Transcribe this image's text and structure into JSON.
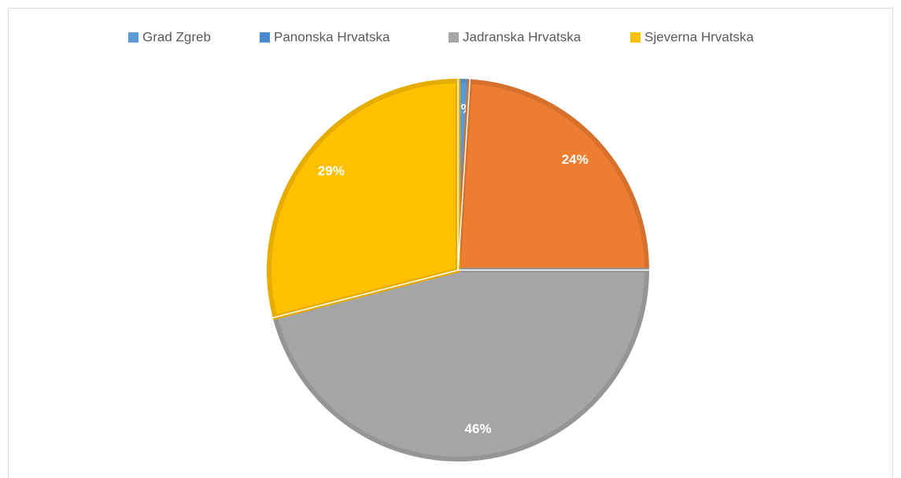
{
  "chart_data": {
    "type": "pie",
    "categories": [
      "Grad Zgreb",
      "Panonska Hrvatska",
      "Jadranska Hrvatska",
      "Sjeverna Hrvatska"
    ],
    "values": [
      1,
      24,
      46,
      29
    ],
    "value_labels": [
      "1%",
      "24%",
      "46%",
      "29%"
    ],
    "colors": [
      "#5b9bd5",
      "#ed7d31",
      "#a5a5a5",
      "#ffc000"
    ],
    "legend_colors": [
      "#5b9bd5",
      "#4a8ad0",
      "#a5a5a5",
      "#ffc000"
    ],
    "legend": "top"
  }
}
